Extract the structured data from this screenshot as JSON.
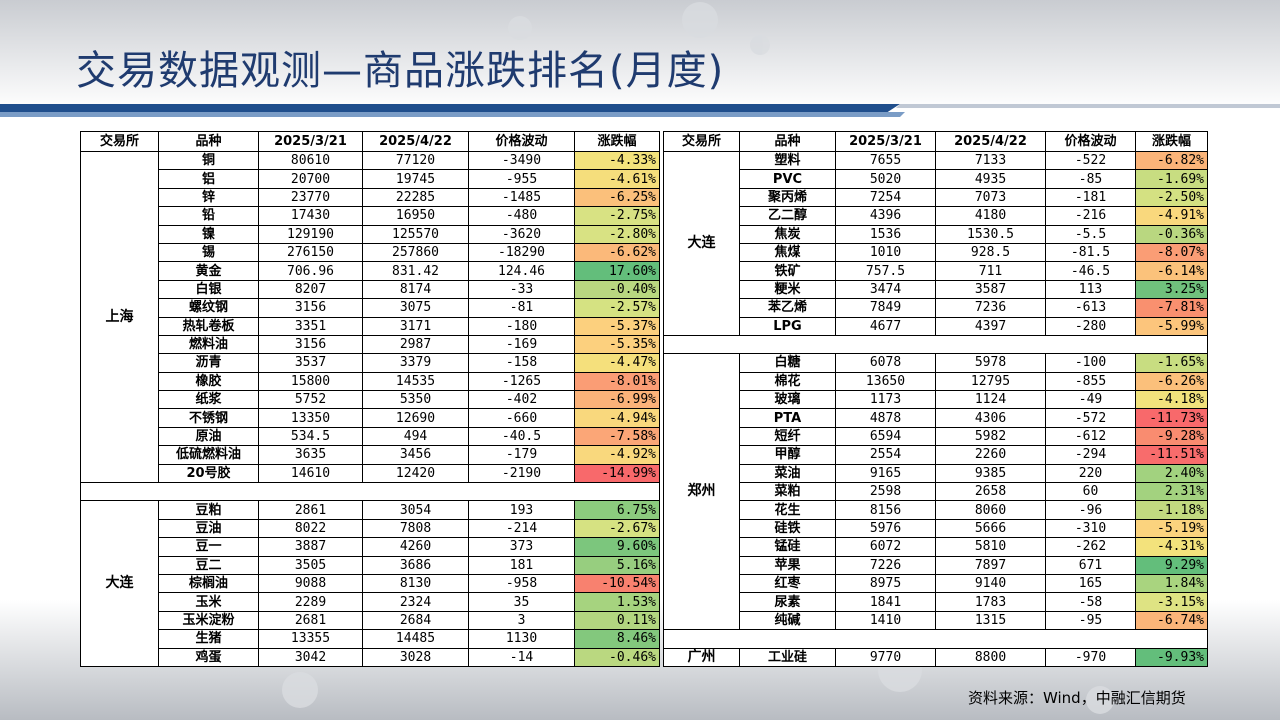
{
  "title": "交易数据观测—商品涨跌排名(月度)",
  "source": "资料来源：Wind，中融汇信期货",
  "headers": [
    "交易所",
    "品种",
    "2025/3/21",
    "2025/4/22",
    "价格波动",
    "涨跌幅"
  ],
  "colors": {
    "title": "#1f3b6f",
    "band_dark": "#1f4e8c",
    "band_light": "#7a9cc6"
  },
  "left_groups": [
    {
      "exchange": "上海",
      "rows": [
        {
          "name": "铜",
          "p1": "80610",
          "p2": "77120",
          "diff": "-3490",
          "pct": "-4.33%",
          "color": "#f3e37c"
        },
        {
          "name": "铝",
          "p1": "20700",
          "p2": "19745",
          "diff": "-955",
          "pct": "-4.61%",
          "color": "#f5de7c"
        },
        {
          "name": "锌",
          "p1": "23770",
          "p2": "22285",
          "diff": "-1485",
          "pct": "-6.25%",
          "color": "#fbc07b"
        },
        {
          "name": "铅",
          "p1": "17430",
          "p2": "16950",
          "diff": "-480",
          "pct": "-2.75%",
          "color": "#d8e283"
        },
        {
          "name": "镍",
          "p1": "129190",
          "p2": "125570",
          "diff": "-3620",
          "pct": "-2.80%",
          "color": "#d8e283"
        },
        {
          "name": "锡",
          "p1": "276150",
          "p2": "257860",
          "diff": "-18290",
          "pct": "-6.62%",
          "color": "#fbb97a"
        },
        {
          "name": "黄金",
          "p1": "706.96",
          "p2": "831.42",
          "diff": "124.46",
          "pct": "17.60%",
          "color": "#63be7b"
        },
        {
          "name": "白银",
          "p1": "8207",
          "p2": "8174",
          "diff": "-33",
          "pct": "-0.40%",
          "color": "#b9d780"
        },
        {
          "name": "螺纹钢",
          "p1": "3156",
          "p2": "3075",
          "diff": "-81",
          "pct": "-2.57%",
          "color": "#d5e282"
        },
        {
          "name": "热轧卷板",
          "p1": "3351",
          "p2": "3171",
          "diff": "-180",
          "pct": "-5.37%",
          "color": "#fcd07e"
        },
        {
          "name": "燃料油",
          "p1": "3156",
          "p2": "2987",
          "diff": "-169",
          "pct": "-5.35%",
          "color": "#fcd07e"
        },
        {
          "name": "沥青",
          "p1": "3537",
          "p2": "3379",
          "diff": "-158",
          "pct": "-4.47%",
          "color": "#f5e07c"
        },
        {
          "name": "橡胶",
          "p1": "15800",
          "p2": "14535",
          "diff": "-1265",
          "pct": "-8.01%",
          "color": "#fa9d75"
        },
        {
          "name": "纸浆",
          "p1": "5752",
          "p2": "5350",
          "diff": "-402",
          "pct": "-6.99%",
          "color": "#fbb279"
        },
        {
          "name": "不锈钢",
          "p1": "13350",
          "p2": "12690",
          "diff": "-660",
          "pct": "-4.94%",
          "color": "#f9d87d"
        },
        {
          "name": "原油",
          "p1": "534.5",
          "p2": "494",
          "diff": "-40.5",
          "pct": "-7.58%",
          "color": "#fba677"
        },
        {
          "name": "低硫燃料油",
          "p1": "3635",
          "p2": "3456",
          "diff": "-179",
          "pct": "-4.92%",
          "color": "#f9d87d"
        },
        {
          "name": "20号胶",
          "p1": "14610",
          "p2": "12420",
          "diff": "-2190",
          "pct": "-14.99%",
          "color": "#f8696b"
        }
      ]
    },
    {
      "exchange": "大连",
      "rows": [
        {
          "name": "豆粕",
          "p1": "2861",
          "p2": "3054",
          "diff": "193",
          "pct": "6.75%",
          "color": "#8ccb7e"
        },
        {
          "name": "豆油",
          "p1": "8022",
          "p2": "7808",
          "diff": "-214",
          "pct": "-2.67%",
          "color": "#d6e282"
        },
        {
          "name": "豆一",
          "p1": "3887",
          "p2": "4260",
          "diff": "373",
          "pct": "9.60%",
          "color": "#7cc67d"
        },
        {
          "name": "豆二",
          "p1": "3505",
          "p2": "3686",
          "diff": "181",
          "pct": "5.16%",
          "color": "#97ce7f"
        },
        {
          "name": "棕榈油",
          "p1": "9088",
          "p2": "8130",
          "diff": "-958",
          "pct": "-10.54%",
          "color": "#f8816f"
        },
        {
          "name": "玉米",
          "p1": "2289",
          "p2": "2324",
          "diff": "35",
          "pct": "1.53%",
          "color": "#a6d37f"
        },
        {
          "name": "玉米淀粉",
          "p1": "2681",
          "p2": "2684",
          "diff": "3",
          "pct": "0.11%",
          "color": "#b2d680"
        },
        {
          "name": "生猪",
          "p1": "13355",
          "p2": "14485",
          "diff": "1130",
          "pct": "8.46%",
          "color": "#83c87d"
        },
        {
          "name": "鸡蛋",
          "p1": "3042",
          "p2": "3028",
          "diff": "-14",
          "pct": "-0.46%",
          "color": "#bad880"
        }
      ]
    }
  ],
  "right_groups": [
    {
      "exchange": "大连",
      "rows": [
        {
          "name": "塑料",
          "p1": "7655",
          "p2": "7133",
          "diff": "-522",
          "pct": "-6.82%",
          "color": "#fbb479"
        },
        {
          "name": "PVC",
          "p1": "5020",
          "p2": "4935",
          "diff": "-85",
          "pct": "-1.69%",
          "color": "#c8dd81"
        },
        {
          "name": "聚丙烯",
          "p1": "7254",
          "p2": "7073",
          "diff": "-181",
          "pct": "-2.50%",
          "color": "#d4e182"
        },
        {
          "name": "乙二醇",
          "p1": "4396",
          "p2": "4180",
          "diff": "-216",
          "pct": "-4.91%",
          "color": "#f9d87d"
        },
        {
          "name": "焦炭",
          "p1": "1536",
          "p2": "1530.5",
          "diff": "-5.5",
          "pct": "-0.36%",
          "color": "#b9d780"
        },
        {
          "name": "焦煤",
          "p1": "1010",
          "p2": "928.5",
          "diff": "-81.5",
          "pct": "-8.07%",
          "color": "#fa9d75"
        },
        {
          "name": "铁矿",
          "p1": "757.5",
          "p2": "711",
          "diff": "-46.5",
          "pct": "-6.14%",
          "color": "#fbc27b"
        },
        {
          "name": "粳米",
          "p1": "3474",
          "p2": "3587",
          "diff": "113",
          "pct": "3.25%",
          "color": "#70c17c"
        },
        {
          "name": "苯乙烯",
          "p1": "7849",
          "p2": "7236",
          "diff": "-613",
          "pct": "-7.81%",
          "color": "#f9906f"
        },
        {
          "name": "LPG",
          "p1": "4677",
          "p2": "4397",
          "diff": "-280",
          "pct": "-5.99%",
          "color": "#fcc57c"
        }
      ]
    },
    {
      "exchange": "郑州",
      "rows": [
        {
          "name": "白糖",
          "p1": "6078",
          "p2": "5978",
          "diff": "-100",
          "pct": "-1.65%",
          "color": "#c8dd81"
        },
        {
          "name": "棉花",
          "p1": "13650",
          "p2": "12795",
          "diff": "-855",
          "pct": "-6.26%",
          "color": "#fbc07b"
        },
        {
          "name": "玻璃",
          "p1": "1173",
          "p2": "1124",
          "diff": "-49",
          "pct": "-4.18%",
          "color": "#f1e27c"
        },
        {
          "name": "PTA",
          "p1": "4878",
          "p2": "4306",
          "diff": "-572",
          "pct": "-11.73%",
          "color": "#f8696b"
        },
        {
          "name": "短纤",
          "p1": "6594",
          "p2": "5982",
          "diff": "-612",
          "pct": "-9.28%",
          "color": "#f98c70"
        },
        {
          "name": "甲醇",
          "p1": "2554",
          "p2": "2260",
          "diff": "-294",
          "pct": "-11.51%",
          "color": "#f86c6c"
        },
        {
          "name": "菜油",
          "p1": "9165",
          "p2": "9385",
          "diff": "220",
          "pct": "2.40%",
          "color": "#a2d27f"
        },
        {
          "name": "菜粕",
          "p1": "2598",
          "p2": "2658",
          "diff": "60",
          "pct": "2.31%",
          "color": "#a3d27f"
        },
        {
          "name": "花生",
          "p1": "8156",
          "p2": "8060",
          "diff": "-96",
          "pct": "-1.18%",
          "color": "#c2da80"
        },
        {
          "name": "硅铁",
          "p1": "5976",
          "p2": "5666",
          "diff": "-310",
          "pct": "-5.19%",
          "color": "#fbd37e"
        },
        {
          "name": "锰硅",
          "p1": "6072",
          "p2": "5810",
          "diff": "-262",
          "pct": "-4.31%",
          "color": "#f3e27c"
        },
        {
          "name": "苹果",
          "p1": "7226",
          "p2": "7897",
          "diff": "671",
          "pct": "9.29%",
          "color": "#63be7b"
        },
        {
          "name": "红枣",
          "p1": "8975",
          "p2": "9140",
          "diff": "165",
          "pct": "1.84%",
          "color": "#a9d47f"
        },
        {
          "name": "尿素",
          "p1": "1841",
          "p2": "1783",
          "diff": "-58",
          "pct": "-3.15%",
          "color": "#dee383"
        },
        {
          "name": "纯碱",
          "p1": "1410",
          "p2": "1315",
          "diff": "-95",
          "pct": "-6.74%",
          "color": "#fbb579"
        }
      ]
    },
    {
      "exchange": "广州",
      "rows": [
        {
          "name": "工业硅",
          "p1": "9770",
          "p2": "8800",
          "diff": "-970",
          "pct": "-9.93%",
          "color": "#63be7b"
        }
      ]
    }
  ]
}
